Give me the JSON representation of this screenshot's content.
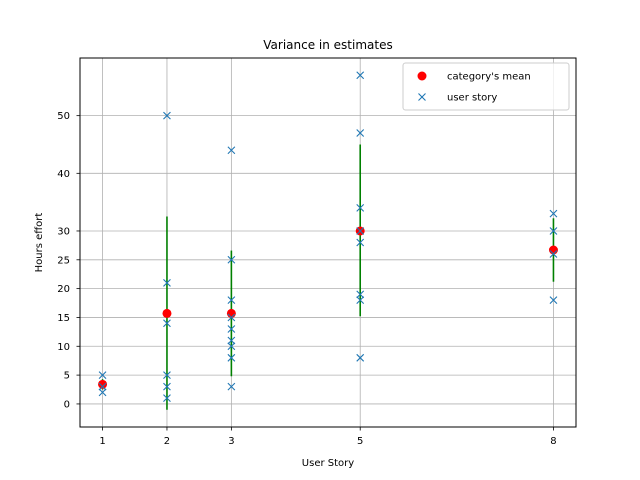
{
  "chart_data": {
    "type": "scatter",
    "title": "Variance in estimates",
    "xlabel": "User Story",
    "ylabel": "Hours effort",
    "xlim": [
      0.65,
      8.35
    ],
    "ylim": [
      -4,
      60
    ],
    "xticks": [
      1,
      2,
      3,
      5,
      8
    ],
    "yticks": [
      0,
      5,
      10,
      15,
      20,
      25,
      30,
      40,
      50
    ],
    "grid": true,
    "legend_position": "upper right",
    "series": [
      {
        "name": "category's mean",
        "marker": "o",
        "color": "#ff0000",
        "points": [
          [
            1,
            3.4
          ],
          [
            2,
            15.7
          ],
          [
            3,
            15.7
          ],
          [
            5,
            30
          ],
          [
            8,
            26.7
          ]
        ]
      },
      {
        "name": "user story",
        "marker": "x",
        "color": "#1f77b4",
        "points": [
          [
            1,
            5
          ],
          [
            1,
            3
          ],
          [
            1,
            2
          ],
          [
            2,
            50
          ],
          [
            2,
            21
          ],
          [
            2,
            14
          ],
          [
            2,
            5
          ],
          [
            2,
            3
          ],
          [
            2,
            1
          ],
          [
            3,
            44
          ],
          [
            3,
            25
          ],
          [
            3,
            18
          ],
          [
            3,
            15
          ],
          [
            3,
            13
          ],
          [
            3,
            11
          ],
          [
            3,
            10
          ],
          [
            3,
            8
          ],
          [
            3,
            3
          ],
          [
            5,
            57
          ],
          [
            5,
            47
          ],
          [
            5,
            34
          ],
          [
            5,
            30
          ],
          [
            5,
            28
          ],
          [
            5,
            19
          ],
          [
            5,
            18
          ],
          [
            5,
            8
          ],
          [
            8,
            33
          ],
          [
            8,
            30
          ],
          [
            8,
            26
          ],
          [
            8,
            18
          ]
        ]
      }
    ],
    "error_bars": {
      "color": "#008000",
      "ranges": [
        [
          1,
          2.5,
          4.3
        ],
        [
          2,
          -1,
          32.5
        ],
        [
          3,
          4.8,
          26.6
        ],
        [
          5,
          15.2,
          45
        ],
        [
          8,
          21.2,
          32.2
        ]
      ]
    }
  }
}
